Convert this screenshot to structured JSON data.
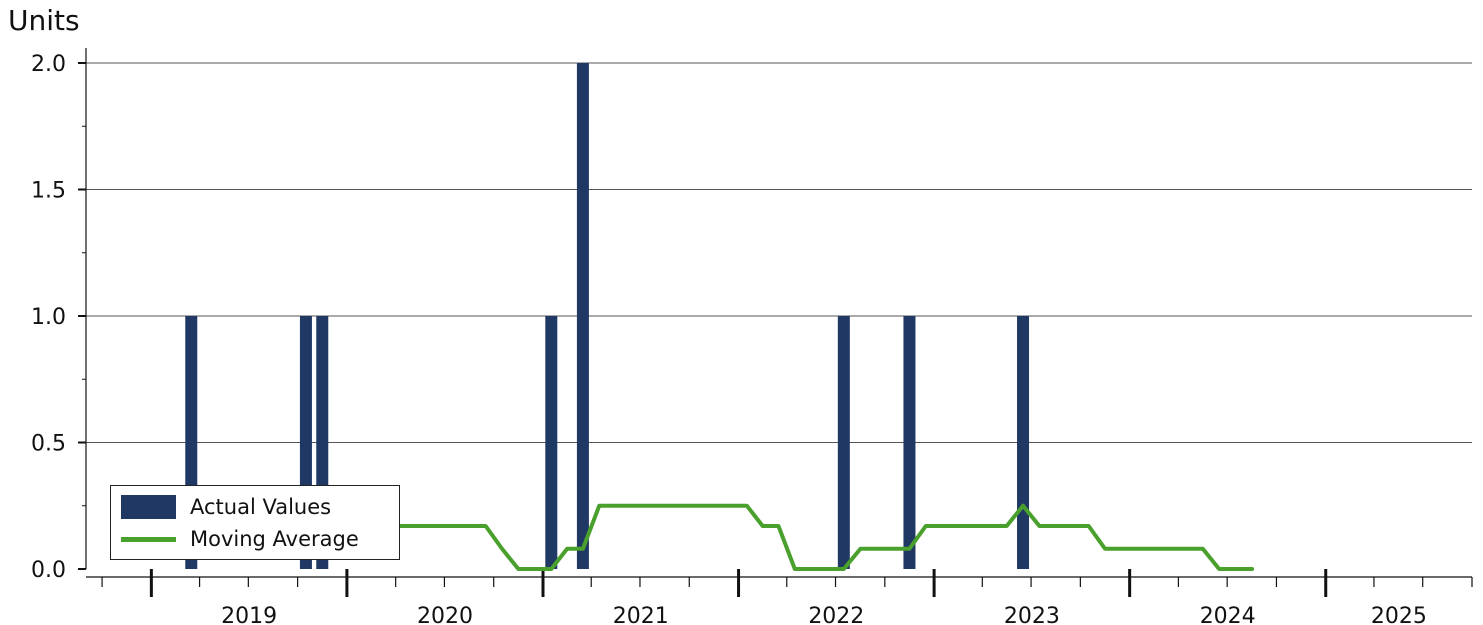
{
  "chart_data": {
    "type": "bar",
    "unit_label": "Units",
    "x_axis": {
      "year_labels": [
        "2019",
        "2020",
        "2021",
        "2022",
        "2023",
        "2024",
        "2025"
      ],
      "range": [
        "2018-09-01",
        "2025-10-01"
      ]
    },
    "y_axis": {
      "ylim": [
        0,
        2
      ],
      "ticks": [
        "0.0",
        "0.5",
        "1.0",
        "1.5",
        "2.0"
      ],
      "grid": true
    },
    "series": [
      {
        "name": "Actual Values",
        "kind": "bar",
        "color": "#1f3864",
        "points": [
          {
            "x": "2019-03",
            "y": 1
          },
          {
            "x": "2019-10",
            "y": 1
          },
          {
            "x": "2019-11",
            "y": 1
          },
          {
            "x": "2021-01",
            "y": 1
          },
          {
            "x": "2021-03",
            "y": 2
          },
          {
            "x": "2022-07",
            "y": 1
          },
          {
            "x": "2022-11",
            "y": 1
          },
          {
            "x": "2023-06",
            "y": 1
          }
        ]
      },
      {
        "name": "Moving Average",
        "kind": "line",
        "color": "#4aa02c",
        "points": [
          {
            "x": "2018-12",
            "y": 0.17
          },
          {
            "x": "2019-01",
            "y": 0.17
          },
          {
            "x": "2019-02",
            "y": 0.17
          },
          {
            "x": "2019-03",
            "y": 0.17
          },
          {
            "x": "2019-04",
            "y": 0.17
          },
          {
            "x": "2019-05",
            "y": 0.17
          },
          {
            "x": "2019-06",
            "y": 0.17
          },
          {
            "x": "2019-07",
            "y": 0.17
          },
          {
            "x": "2019-08",
            "y": 0.17
          },
          {
            "x": "2019-09",
            "y": 0.17
          },
          {
            "x": "2019-10",
            "y": 0.17
          },
          {
            "x": "2019-11",
            "y": 0.17
          },
          {
            "x": "2019-12",
            "y": 0.17
          },
          {
            "x": "2020-01",
            "y": 0.17
          },
          {
            "x": "2020-02",
            "y": 0.17
          },
          {
            "x": "2020-03",
            "y": 0.17
          },
          {
            "x": "2020-04",
            "y": 0.17
          },
          {
            "x": "2020-05",
            "y": 0.17
          },
          {
            "x": "2020-06",
            "y": 0.17
          },
          {
            "x": "2020-07",
            "y": 0.17
          },
          {
            "x": "2020-08",
            "y": 0.17
          },
          {
            "x": "2020-09",
            "y": 0.17
          },
          {
            "x": "2020-10",
            "y": 0.08
          },
          {
            "x": "2020-11",
            "y": 0.0
          },
          {
            "x": "2020-12",
            "y": 0.0
          },
          {
            "x": "2021-01",
            "y": 0.0
          },
          {
            "x": "2021-02",
            "y": 0.08
          },
          {
            "x": "2021-03",
            "y": 0.08
          },
          {
            "x": "2021-04",
            "y": 0.25
          },
          {
            "x": "2021-05",
            "y": 0.25
          },
          {
            "x": "2021-06",
            "y": 0.25
          },
          {
            "x": "2021-07",
            "y": 0.25
          },
          {
            "x": "2021-08",
            "y": 0.25
          },
          {
            "x": "2021-09",
            "y": 0.25
          },
          {
            "x": "2021-10",
            "y": 0.25
          },
          {
            "x": "2021-11",
            "y": 0.25
          },
          {
            "x": "2021-12",
            "y": 0.25
          },
          {
            "x": "2022-01",
            "y": 0.25
          },
          {
            "x": "2022-02",
            "y": 0.17
          },
          {
            "x": "2022-03",
            "y": 0.17
          },
          {
            "x": "2022-04",
            "y": 0.0
          },
          {
            "x": "2022-05",
            "y": 0.0
          },
          {
            "x": "2022-06",
            "y": 0.0
          },
          {
            "x": "2022-07",
            "y": 0.0
          },
          {
            "x": "2022-08",
            "y": 0.08
          },
          {
            "x": "2022-09",
            "y": 0.08
          },
          {
            "x": "2022-10",
            "y": 0.08
          },
          {
            "x": "2022-11",
            "y": 0.08
          },
          {
            "x": "2022-12",
            "y": 0.17
          },
          {
            "x": "2023-01",
            "y": 0.17
          },
          {
            "x": "2023-02",
            "y": 0.17
          },
          {
            "x": "2023-03",
            "y": 0.17
          },
          {
            "x": "2023-04",
            "y": 0.17
          },
          {
            "x": "2023-05",
            "y": 0.17
          },
          {
            "x": "2023-06",
            "y": 0.25
          },
          {
            "x": "2023-07",
            "y": 0.17
          },
          {
            "x": "2023-08",
            "y": 0.17
          },
          {
            "x": "2023-09",
            "y": 0.17
          },
          {
            "x": "2023-10",
            "y": 0.17
          },
          {
            "x": "2023-11",
            "y": 0.08
          },
          {
            "x": "2023-12",
            "y": 0.08
          },
          {
            "x": "2024-01",
            "y": 0.08
          },
          {
            "x": "2024-02",
            "y": 0.08
          },
          {
            "x": "2024-03",
            "y": 0.08
          },
          {
            "x": "2024-04",
            "y": 0.08
          },
          {
            "x": "2024-05",
            "y": 0.08
          },
          {
            "x": "2024-06",
            "y": 0.0
          },
          {
            "x": "2024-07",
            "y": 0.0
          },
          {
            "x": "2024-08",
            "y": 0.0
          }
        ]
      }
    ],
    "legend": {
      "placement": "bottom-left",
      "entries": [
        "Actual Values",
        "Moving Average"
      ]
    }
  }
}
